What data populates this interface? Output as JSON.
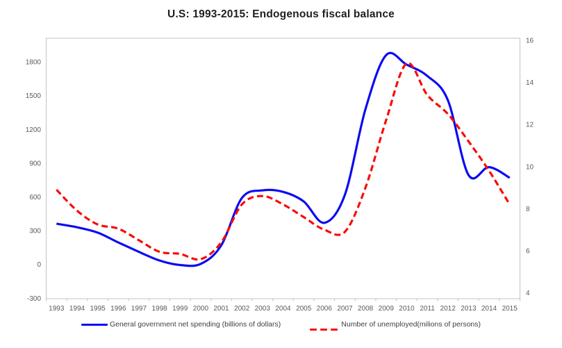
{
  "title": "U.S: 1993-2015: Endogenous fiscal balance",
  "legend": {
    "series1_label": "General government net spending (billions of dollars)",
    "series2_label": "Number of unemployed(milions of persons)"
  },
  "colors": {
    "series1": "#0b0bf2",
    "series2": "#f80c08",
    "axis_text": "#595959",
    "border": "#c3c3c3",
    "title_text": "#1f1f1f",
    "legend_text": "#3f3f3f"
  },
  "chart_data": {
    "type": "line",
    "title": "U.S: 1993-2015: Endogenous fiscal balance",
    "x": [
      1993,
      1994,
      1995,
      1996,
      1997,
      1998,
      1999,
      2000,
      2001,
      2002,
      2003,
      2004,
      2005,
      2006,
      2007,
      2008,
      2009,
      2010,
      2011,
      2012,
      2013,
      2014,
      2015
    ],
    "series": [
      {
        "name": "General government net spending (billions of dollars)",
        "axis": "left",
        "line_style": "solid",
        "color": "#0b0bf2",
        "values": [
          362,
          330,
          283,
          195,
          112,
          35,
          -5,
          5,
          170,
          590,
          658,
          645,
          560,
          370,
          620,
          1380,
          1860,
          1775,
          1675,
          1460,
          795,
          865,
          770
        ]
      },
      {
        "name": "Number of unemployed(milions of persons)",
        "axis": "right",
        "line_style": "dashed",
        "color": "#f80c08",
        "values": [
          8.9,
          7.9,
          7.25,
          7.05,
          6.5,
          5.95,
          5.85,
          5.6,
          6.4,
          8.2,
          8.6,
          8.2,
          7.6,
          7.0,
          6.9,
          9.0,
          12.2,
          14.9,
          13.4,
          12.5,
          11.2,
          9.8,
          8.2
        ]
      }
    ],
    "left_axis": {
      "ticks": [
        -300,
        0,
        300,
        600,
        900,
        1200,
        1500,
        1800
      ],
      "min": -300,
      "max": 1800
    },
    "right_axis": {
      "ticks": [
        4,
        6,
        8,
        10,
        12,
        14,
        16
      ],
      "min": 4,
      "max": 16
    },
    "grid": false,
    "legend_position": "bottom",
    "smoothed_lines": true
  }
}
